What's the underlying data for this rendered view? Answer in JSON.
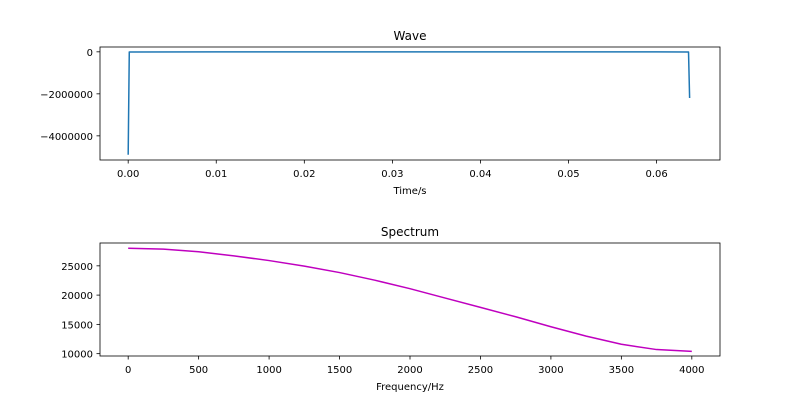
{
  "chart_data": [
    {
      "type": "line",
      "title": "Wave",
      "xlabel": "Time/s",
      "ylabel": "",
      "xlim": [
        -0.0032,
        0.0672
      ],
      "ylim": [
        -5150000,
        230000
      ],
      "xticks": [
        0.0,
        0.01,
        0.02,
        0.03,
        0.04,
        0.05,
        0.06
      ],
      "xtick_labels": [
        "0.00",
        "0.01",
        "0.02",
        "0.03",
        "0.04",
        "0.05",
        "0.06"
      ],
      "yticks": [
        0,
        -2000000,
        -4000000
      ],
      "ytick_labels": [
        "0",
        "−2000000",
        "−4000000"
      ],
      "color": "#1f77b4",
      "grid": false,
      "series": [
        {
          "x": [
            0.0,
            0.000125,
            0.01,
            0.02,
            0.03,
            0.04,
            0.05,
            0.06,
            0.063625,
            0.06375
          ],
          "y": [
            -4900000,
            -10000,
            0,
            0,
            0,
            0,
            0,
            0,
            -10000,
            -2200000
          ]
        }
      ]
    },
    {
      "type": "line",
      "title": "Spectrum",
      "xlabel": "Frequency/Hz",
      "ylabel": "",
      "xlim": [
        -200,
        4200
      ],
      "ylim": [
        9600,
        28900
      ],
      "xticks": [
        0,
        500,
        1000,
        1500,
        2000,
        2500,
        3000,
        3500,
        4000
      ],
      "xtick_labels": [
        "0",
        "500",
        "1000",
        "1500",
        "2000",
        "2500",
        "3000",
        "3500",
        "4000"
      ],
      "yticks": [
        10000,
        15000,
        20000,
        25000
      ],
      "ytick_labels": [
        "10000",
        "15000",
        "20000",
        "25000"
      ],
      "color": "#bf00bf",
      "grid": false,
      "series": [
        {
          "x": [
            0,
            250,
            500,
            750,
            1000,
            1250,
            1500,
            1750,
            2000,
            2250,
            2500,
            2750,
            3000,
            3250,
            3500,
            3750,
            4000
          ],
          "y": [
            28000,
            27850,
            27400,
            26700,
            25900,
            24950,
            23850,
            22550,
            21100,
            19500,
            17900,
            16300,
            14600,
            13000,
            11600,
            10700,
            10400
          ]
        }
      ]
    }
  ]
}
